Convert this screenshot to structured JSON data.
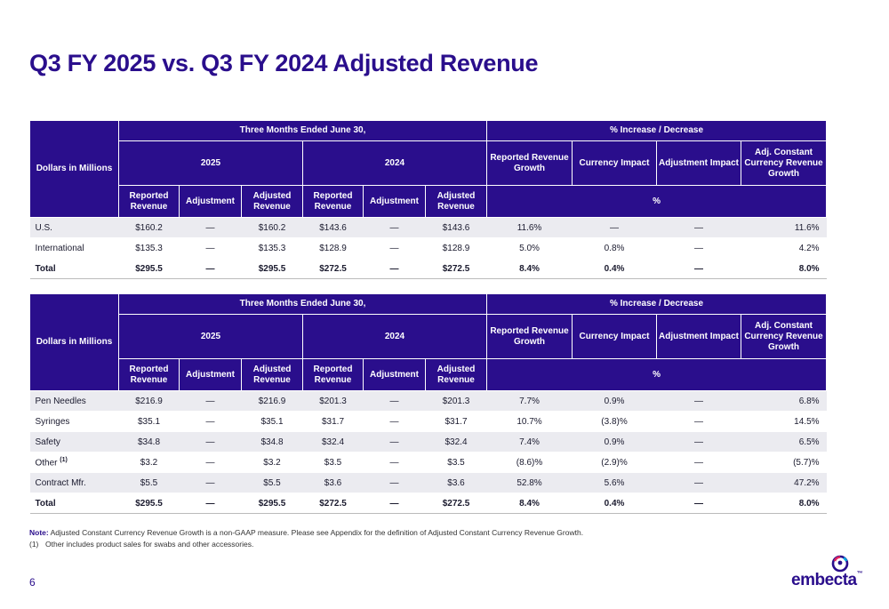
{
  "title": "Q3 FY 2025 vs. Q3 FY 2024 Adjusted Revenue",
  "headers": {
    "corner": "Dollars in Millions",
    "period": "Three Months Ended June 30,",
    "pct": "% Increase / Decrease",
    "year_2025": "2025",
    "year_2024": "2024",
    "reported_growth": "Reported Revenue Growth",
    "currency_impact": "Currency Impact",
    "adjustment_impact": "Adjustment Impact",
    "adj_constant": "Adj. Constant Currency Revenue Growth",
    "reported_revenue": "Reported Revenue",
    "adjustment": "Adjustment",
    "adjusted_revenue": "Adjusted Revenue",
    "percent": "%"
  },
  "table1": {
    "rows": [
      {
        "label": "U.S.",
        "c": [
          "$160.2",
          "—",
          "$160.2",
          "$143.6",
          "—",
          "$143.6",
          "11.6%",
          "—",
          "—",
          "11.6%"
        ]
      },
      {
        "label": "International",
        "c": [
          "$135.3",
          "—",
          "$135.3",
          "$128.9",
          "—",
          "$128.9",
          "5.0%",
          "0.8%",
          "—",
          "4.2%"
        ]
      },
      {
        "label": "Total",
        "c": [
          "$295.5",
          "—",
          "$295.5",
          "$272.5",
          "—",
          "$272.5",
          "8.4%",
          "0.4%",
          "—",
          "8.0%"
        ]
      }
    ]
  },
  "table2": {
    "rows": [
      {
        "label": "Pen Needles",
        "c": [
          "$216.9",
          "—",
          "$216.9",
          "$201.3",
          "—",
          "$201.3",
          "7.7%",
          "0.9%",
          "—",
          "6.8%"
        ]
      },
      {
        "label": "Syringes",
        "c": [
          "$35.1",
          "—",
          "$35.1",
          "$31.7",
          "—",
          "$31.7",
          "10.7%",
          "(3.8)%",
          "—",
          "14.5%"
        ]
      },
      {
        "label": "Safety",
        "c": [
          "$34.8",
          "—",
          "$34.8",
          "$32.4",
          "—",
          "$32.4",
          "7.4%",
          "0.9%",
          "—",
          "6.5%"
        ]
      },
      {
        "label": "Other",
        "sup": "(1)",
        "c": [
          "$3.2",
          "—",
          "$3.2",
          "$3.5",
          "—",
          "$3.5",
          "(8.6)%",
          "(2.9)%",
          "—",
          "(5.7)%"
        ]
      },
      {
        "label": "Contract Mfr.",
        "c": [
          "$5.5",
          "—",
          "$5.5",
          "$3.6",
          "—",
          "$3.6",
          "52.8%",
          "5.6%",
          "—",
          "47.2%"
        ]
      },
      {
        "label": "Total",
        "c": [
          "$295.5",
          "—",
          "$295.5",
          "$272.5",
          "—",
          "$272.5",
          "8.4%",
          "0.4%",
          "—",
          "8.0%"
        ]
      }
    ]
  },
  "note": {
    "label": "Note:",
    "text": " Adjusted Constant Currency Revenue Growth is a non-GAAP measure. Please see Appendix for the definition of Adjusted Constant Currency Revenue Growth."
  },
  "footnote": {
    "num": "(1)",
    "text": "Other includes product sales for swabs and other accessories."
  },
  "page_number": "6",
  "logo": {
    "word": "embecta",
    "tm": "™"
  },
  "colors": {
    "brand": "#2a0e8c",
    "row_alt": "#ebebf0"
  }
}
